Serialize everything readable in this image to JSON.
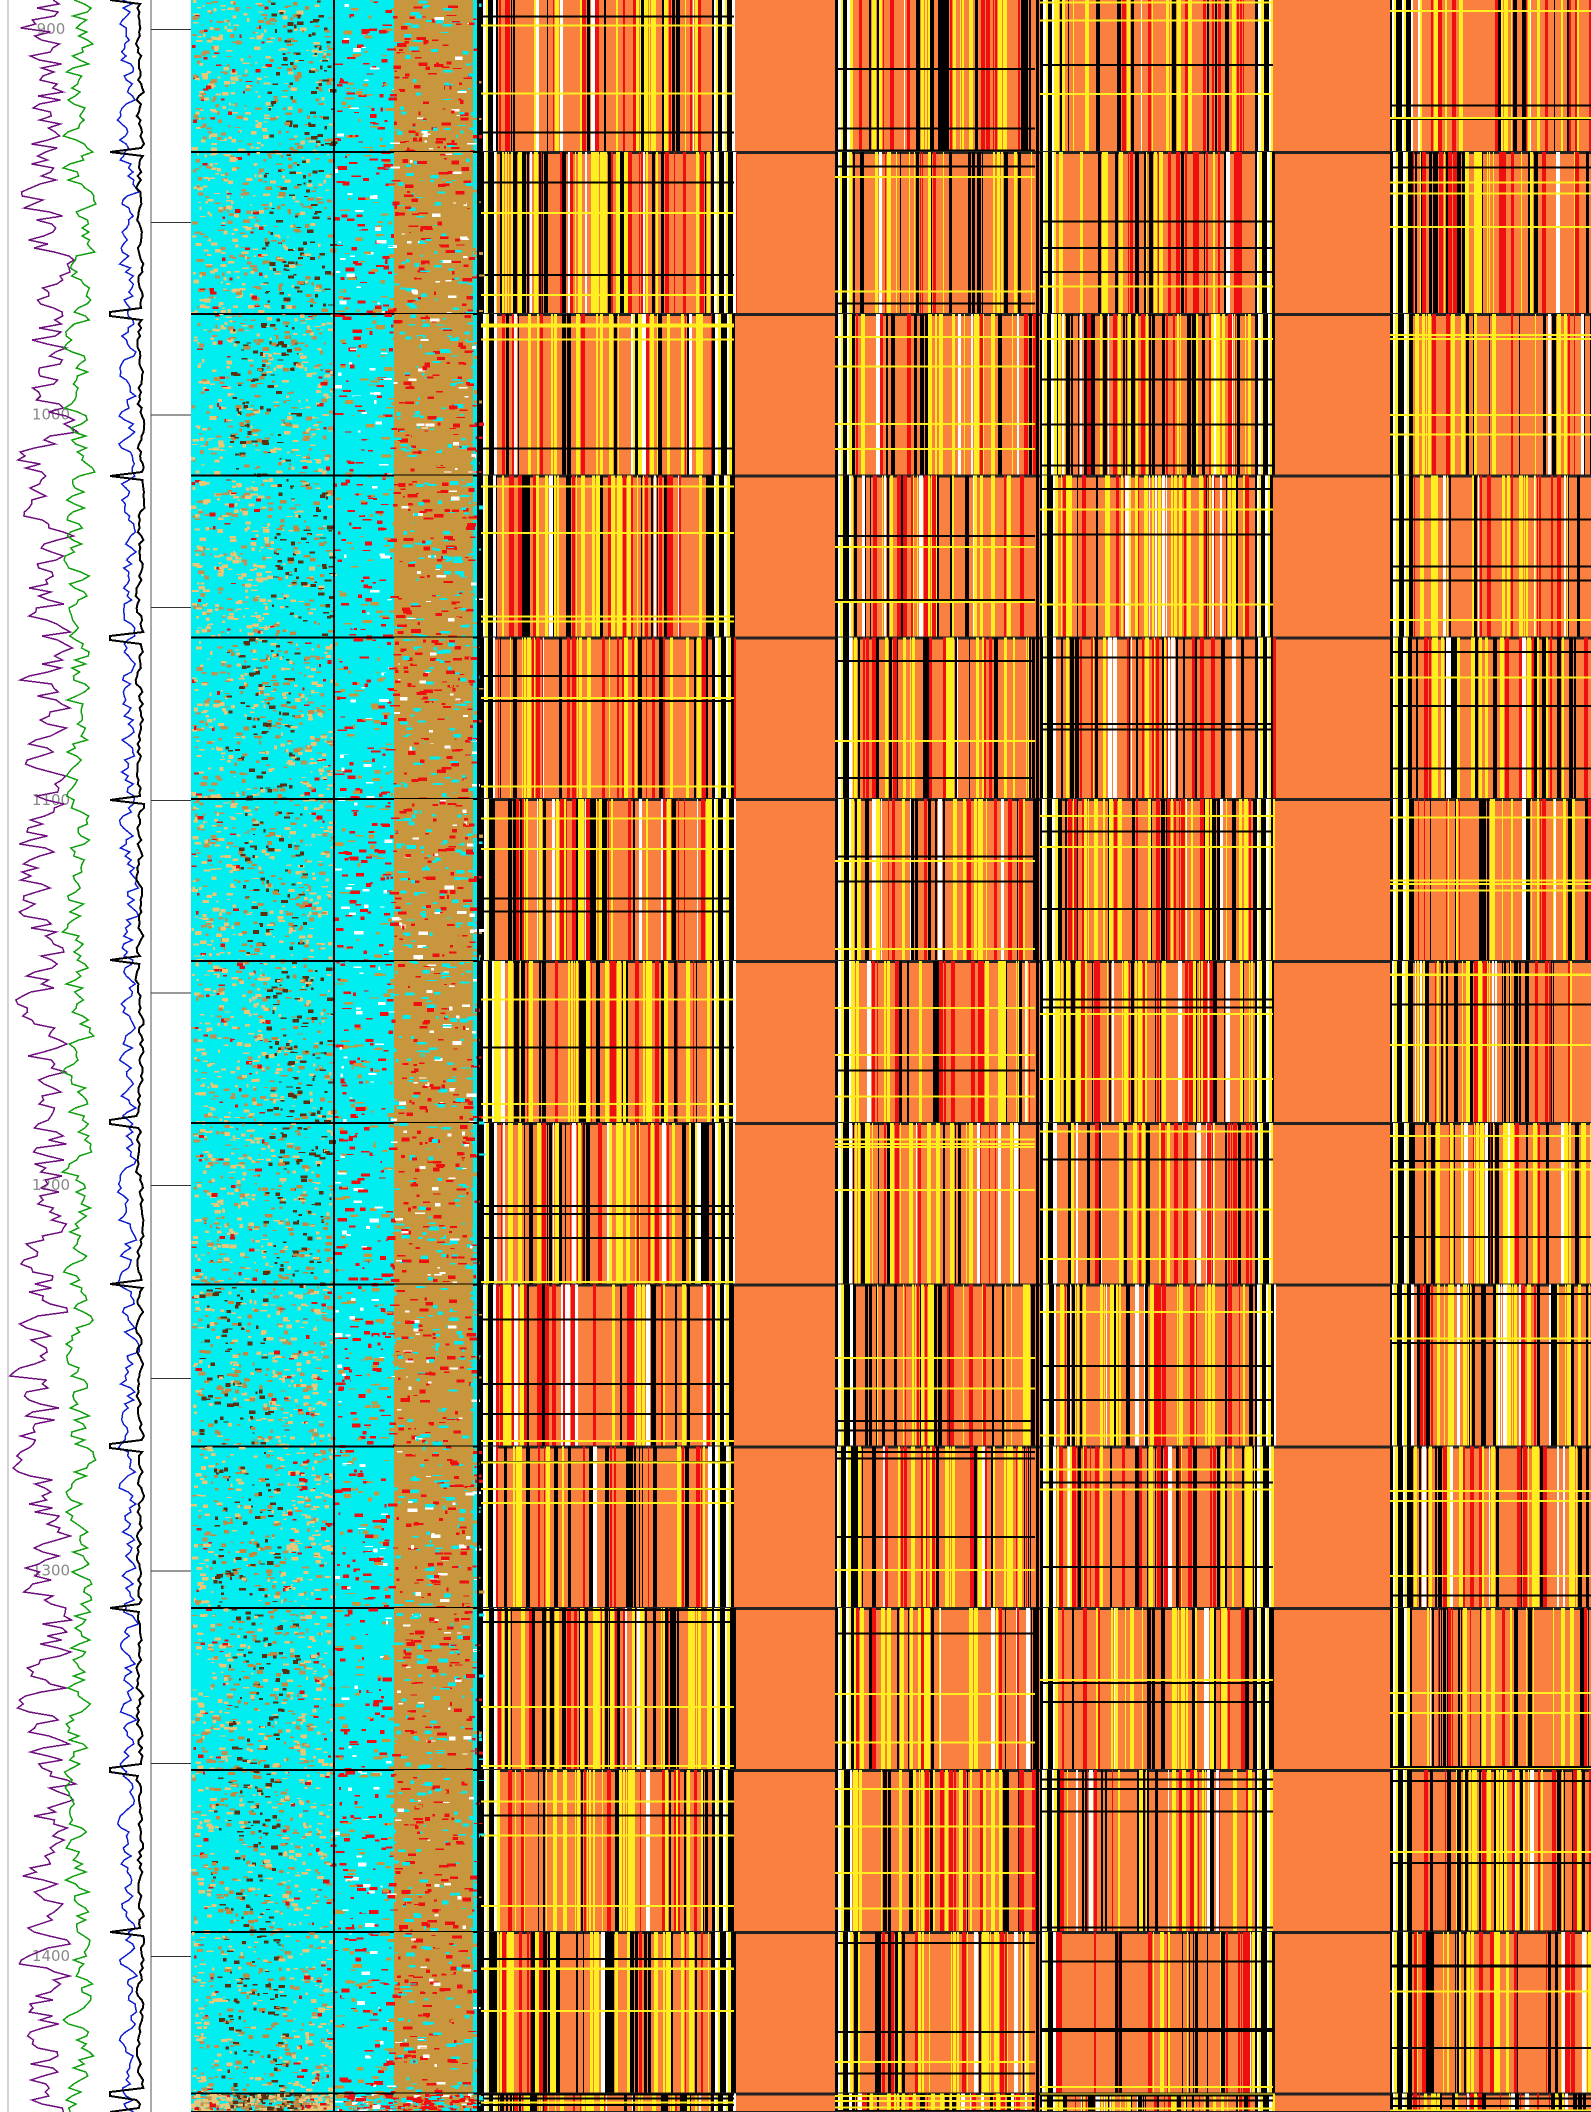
{
  "chart_data": {
    "type": "well-log",
    "ylim": [
      892.3,
      1440.4
    ],
    "yticks": [
      900,
      1000,
      1100,
      1200,
      1300,
      1400
    ],
    "minor_yticks": [
      950,
      1050,
      1150,
      1250,
      1350
    ]
  }
}
